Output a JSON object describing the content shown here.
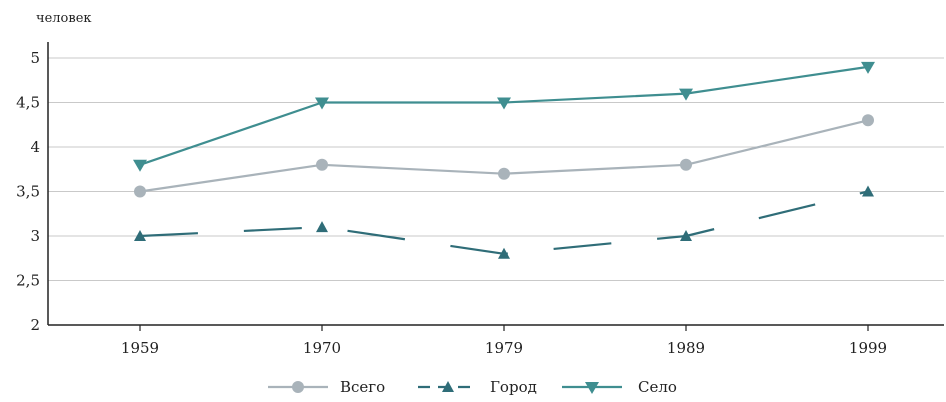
{
  "chart_data": {
    "type": "line",
    "ylabel": "человек",
    "xlabel": "",
    "categories": [
      "1959",
      "1970",
      "1979",
      "1989",
      "1999"
    ],
    "ylim": [
      2,
      5
    ],
    "yticks": [
      "2",
      "2,5",
      "3",
      "3,5",
      "4",
      "4,5",
      "5"
    ],
    "ytick_values": [
      2,
      2.5,
      3,
      3.5,
      4,
      4.5,
      5
    ],
    "grid": "horizontal",
    "legend_position": "bottom",
    "series": [
      {
        "name": "Всего",
        "values": [
          3.5,
          3.8,
          3.7,
          3.8,
          4.3
        ],
        "color": "#a9b3ba",
        "marker": "circle",
        "dash": "solid"
      },
      {
        "name": "Город",
        "values": [
          3.0,
          3.1,
          2.8,
          3.0,
          3.5
        ],
        "color": "#2f6d78",
        "marker": "triangle-up",
        "dash": "dashed"
      },
      {
        "name": "Село",
        "values": [
          3.8,
          4.5,
          4.5,
          4.6,
          4.9
        ],
        "color": "#3f8e90",
        "marker": "triangle-down",
        "dash": "solid"
      }
    ]
  }
}
